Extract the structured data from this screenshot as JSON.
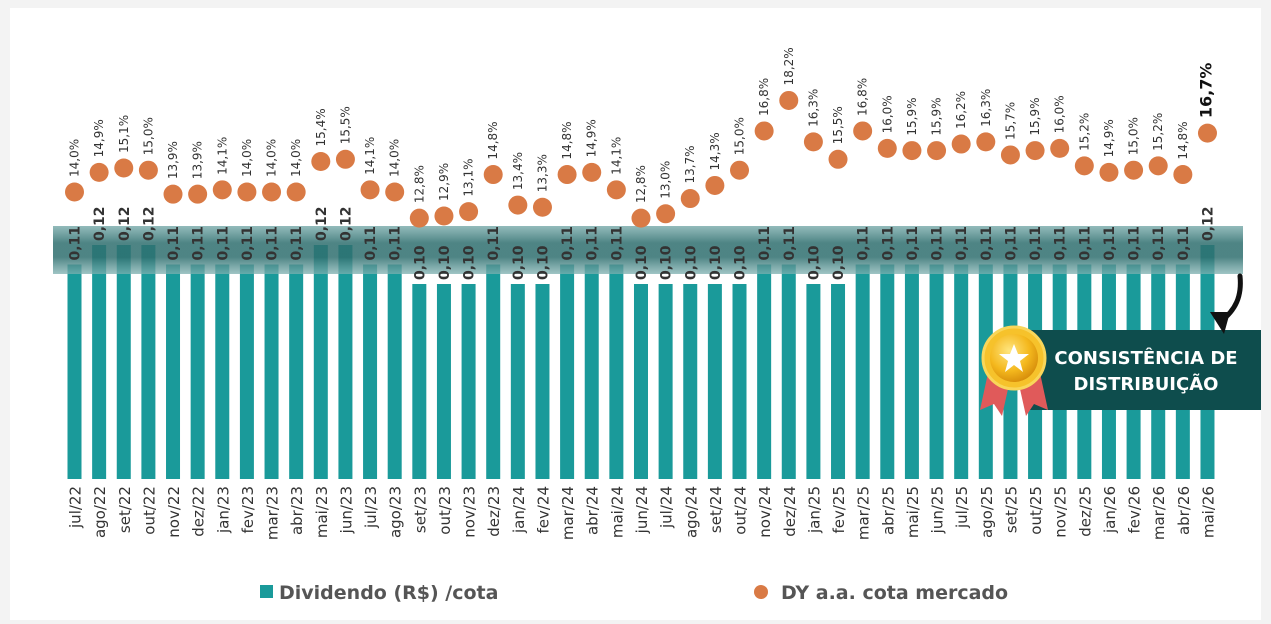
{
  "chart_data": {
    "type": "bar",
    "categories": [
      "jul/22",
      "ago/22",
      "set/22",
      "out/22",
      "nov/22",
      "dez/22",
      "jan/23",
      "fev/23",
      "mar/23",
      "abr/23",
      "mai/23",
      "jun/23",
      "jul/23",
      "ago/23",
      "set/23",
      "out/23",
      "nov/23",
      "dez/23",
      "jan/24",
      "fev/24",
      "mar/24",
      "abr/24",
      "mai/24",
      "jun/24",
      "jul/24",
      "ago/24",
      "set/24",
      "out/24",
      "nov/24",
      "dez/24",
      "jan/25",
      "fev/25",
      "mar/25",
      "abr/25",
      "mai/25",
      "jun/25",
      "jul/25",
      "ago/25",
      "set/25",
      "out/25",
      "nov/25",
      "dez/25",
      "jan/26",
      "fev/26",
      "mar/26",
      "abr/26",
      "mai/26"
    ],
    "series": [
      {
        "name": "Dividendo (R$) /cota",
        "kind": "bar",
        "color": "#1a9a9a",
        "values": [
          0.11,
          0.12,
          0.12,
          0.12,
          0.11,
          0.11,
          0.11,
          0.11,
          0.11,
          0.11,
          0.12,
          0.12,
          0.11,
          0.11,
          0.1,
          0.1,
          0.1,
          0.11,
          0.1,
          0.1,
          0.11,
          0.11,
          0.11,
          0.1,
          0.1,
          0.1,
          0.1,
          0.1,
          0.11,
          0.11,
          0.1,
          0.1,
          0.11,
          0.11,
          0.11,
          0.11,
          0.11,
          0.11,
          0.11,
          0.11,
          0.11,
          0.11,
          0.11,
          0.11,
          0.11,
          0.11,
          0.12
        ],
        "labels": [
          "0,11",
          "0,12",
          "0,12",
          "0,12",
          "0,11",
          "0,11",
          "0,11",
          "0,11",
          "0,11",
          "0,11",
          "0,12",
          "0,12",
          "0,11",
          "0,11",
          "0,10",
          "0,10",
          "0,10",
          "0,11",
          "0,10",
          "0,10",
          "0,11",
          "0,11",
          "0,11",
          "0,10",
          "0,10",
          "0,10",
          "0,10",
          "0,10",
          "0,11",
          "0,11",
          "0,10",
          "0,10",
          "0,11",
          "0,11",
          "0,11",
          "0,11",
          "0,11",
          "0,11",
          "0,11",
          "0,11",
          "0,11",
          "0,11",
          "0,11",
          "0,11",
          "0,11",
          "0,11",
          "0,12"
        ]
      },
      {
        "name": "DY a.a. cota mercado",
        "kind": "scatter",
        "color": "#d97a45",
        "values": [
          14.0,
          14.9,
          15.1,
          15.0,
          13.9,
          13.9,
          14.1,
          14.0,
          14.0,
          14.0,
          15.4,
          15.5,
          14.1,
          14.0,
          12.8,
          12.9,
          13.1,
          14.8,
          13.4,
          13.3,
          14.8,
          14.9,
          14.1,
          12.8,
          13.0,
          13.7,
          14.3,
          15.0,
          16.8,
          18.2,
          16.3,
          15.5,
          16.8,
          16.0,
          15.9,
          15.9,
          16.2,
          16.3,
          15.7,
          15.9,
          16.0,
          15.2,
          14.9,
          15.0,
          15.2,
          14.8,
          16.7
        ],
        "labels": [
          "14,0%",
          "14,9%",
          "15,1%",
          "15,0%",
          "13,9%",
          "13,9%",
          "14,1%",
          "14,0%",
          "14,0%",
          "14,0%",
          "15,4%",
          "15,5%",
          "14,1%",
          "14,0%",
          "12,8%",
          "12,9%",
          "13,1%",
          "14,8%",
          "13,4%",
          "13,3%",
          "14,8%",
          "14,9%",
          "14,1%",
          "12,8%",
          "13,0%",
          "13,7%",
          "14,3%",
          "15,0%",
          "16,8%",
          "18,2%",
          "16,3%",
          "15,5%",
          "16,8%",
          "16,0%",
          "15,9%",
          "15,9%",
          "16,2%",
          "16,3%",
          "15,7%",
          "15,9%",
          "16,0%",
          "15,2%",
          "14,9%",
          "15,0%",
          "15,2%",
          "14,8%",
          "16,7%"
        ]
      }
    ],
    "legend": [
      "Dividendo (R$) /cota",
      "DY a.a. cota mercado"
    ],
    "legend_position": "bottom",
    "highlight_last_label": true,
    "grid": false
  },
  "callout": {
    "line1": "CONSISTÊNCIA DE",
    "line2": "DISTRIBUIÇÃO",
    "icon": "award-medal-icon",
    "arrow": "curved-arrow-icon"
  },
  "colors": {
    "bar": "#1a9a9a",
    "dot": "#d97a45",
    "band": "#3f7f7f",
    "callout_bg": "#0e4d4d"
  }
}
